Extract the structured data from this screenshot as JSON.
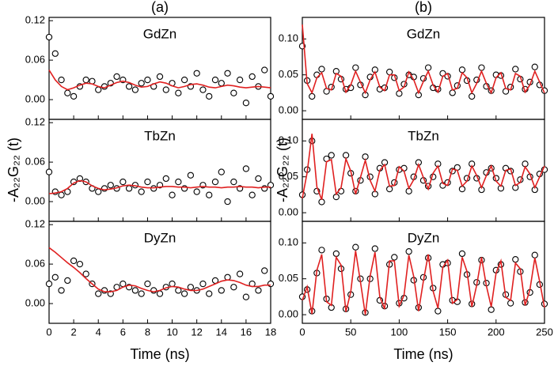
{
  "panels": [
    {
      "label": "(a)",
      "ylabel": "-A₂₂G₂₂ (t)",
      "xlabel": "Time (ns)"
    },
    {
      "label": "(b)",
      "ylabel": "-A₂₂G₂₂ (t)",
      "xlabel": "Time (ns)"
    }
  ],
  "chart_data": [
    {
      "type": "scatter",
      "title": "GdZn",
      "x": [
        0,
        0.5,
        1,
        1.5,
        2,
        2.5,
        3,
        3.5,
        4,
        4.5,
        5,
        5.5,
        6,
        6.5,
        7,
        7.5,
        8,
        8.5,
        9,
        9.5,
        10,
        10.5,
        11,
        11.5,
        12,
        12.5,
        13,
        13.5,
        14,
        14.5,
        15,
        15.5,
        16,
        16.5,
        17,
        17.5,
        18
      ],
      "xlim": [
        0,
        18
      ],
      "xticks": [
        0,
        2,
        4,
        6,
        8,
        10,
        12,
        14,
        16,
        18
      ],
      "ylim": [
        -0.03,
        0.125
      ],
      "yticks": [
        {
          "value": 0,
          "label": "0.00"
        },
        0.06,
        0.12
      ],
      "series": [
        {
          "mode": "markers",
          "color": "#000000",
          "values": [
            0.095,
            0.07,
            0.03,
            0.01,
            0.005,
            0.02,
            0.03,
            0.028,
            0.015,
            0.02,
            0.025,
            0.035,
            0.03,
            0.02,
            0.015,
            0.025,
            0.03,
            0.02,
            0.035,
            0.015,
            0.025,
            0.01,
            0.03,
            0.02,
            0.04,
            0.015,
            0.005,
            0.03,
            0.025,
            0.04,
            0.01,
            0.03,
            -0.005,
            0.035,
            0.02,
            0.045,
            0.005
          ]
        },
        {
          "mode": "line",
          "color": "#e02020",
          "values": [
            0.045,
            0.03,
            0.02,
            0.015,
            0.018,
            0.022,
            0.025,
            0.024,
            0.02,
            0.018,
            0.022,
            0.026,
            0.028,
            0.026,
            0.022,
            0.019,
            0.02,
            0.024,
            0.027,
            0.025,
            0.021,
            0.018,
            0.02,
            0.023,
            0.024,
            0.022,
            0.019,
            0.018,
            0.02,
            0.022,
            0.021,
            0.019,
            0.018,
            0.019,
            0.02,
            0.019,
            0.018
          ]
        }
      ]
    },
    {
      "type": "scatter",
      "title": "TbZn",
      "x": [
        0,
        0.5,
        1,
        1.5,
        2,
        2.5,
        3,
        3.5,
        4,
        4.5,
        5,
        5.5,
        6,
        6.5,
        7,
        7.5,
        8,
        8.5,
        9,
        9.5,
        10,
        10.5,
        11,
        11.5,
        12,
        12.5,
        13,
        13.5,
        14,
        14.5,
        15,
        15.5,
        16,
        16.5,
        17,
        17.5,
        18
      ],
      "xlim": [
        0,
        18
      ],
      "xticks": [
        0,
        2,
        4,
        6,
        8,
        10,
        12,
        14,
        16,
        18
      ],
      "ylim": [
        -0.03,
        0.125
      ],
      "yticks": [
        {
          "value": 0,
          "label": "0.00"
        },
        0.06,
        0.12
      ],
      "series": [
        {
          "mode": "markers",
          "color": "#000000",
          "values": [
            0.045,
            0.015,
            0.01,
            0.015,
            0.03,
            0.035,
            0.03,
            0.02,
            0.015,
            0.02,
            0.025,
            0.02,
            0.03,
            0.02,
            0.025,
            0.015,
            0.03,
            0.02,
            0.025,
            0.035,
            0.01,
            0.03,
            0.02,
            0.04,
            0.015,
            0.025,
            0.01,
            0.03,
            0.045,
            0.0,
            0.03,
            0.02,
            0.05,
            0.01,
            0.035,
            0.02,
            0.025
          ]
        },
        {
          "mode": "line",
          "color": "#e02020",
          "values": [
            0.012,
            0.013,
            0.015,
            0.02,
            0.028,
            0.032,
            0.03,
            0.024,
            0.02,
            0.018,
            0.019,
            0.021,
            0.024,
            0.025,
            0.024,
            0.022,
            0.021,
            0.021,
            0.022,
            0.023,
            0.023,
            0.022,
            0.022,
            0.021,
            0.022,
            0.023,
            0.022,
            0.022,
            0.021,
            0.022,
            0.022,
            0.023,
            0.022,
            0.022,
            0.021,
            0.022,
            0.022
          ]
        }
      ]
    },
    {
      "type": "scatter",
      "title": "DyZn",
      "x": [
        0,
        0.5,
        1,
        1.5,
        2,
        2.5,
        3,
        3.5,
        4,
        4.5,
        5,
        5.5,
        6,
        6.5,
        7,
        7.5,
        8,
        8.5,
        9,
        9.5,
        10,
        10.5,
        11,
        11.5,
        12,
        12.5,
        13,
        13.5,
        14,
        14.5,
        15,
        15.5,
        16,
        16.5,
        17,
        17.5,
        18
      ],
      "xlim": [
        0,
        18
      ],
      "xticks": [
        0,
        2,
        4,
        6,
        8,
        10,
        12,
        14,
        16,
        18
      ],
      "ylim": [
        -0.03,
        0.125
      ],
      "yticks": [
        {
          "value": 0,
          "label": "0.00"
        },
        0.06,
        0.12
      ],
      "series": [
        {
          "mode": "markers",
          "color": "#000000",
          "values": [
            0.03,
            0.04,
            0.02,
            0.035,
            0.065,
            0.06,
            0.045,
            0.03,
            0.015,
            0.02,
            0.015,
            0.025,
            0.03,
            0.025,
            0.02,
            0.015,
            0.03,
            0.02,
            0.015,
            0.025,
            0.03,
            0.02,
            0.015,
            0.025,
            0.02,
            0.03,
            0.015,
            0.035,
            0.02,
            0.04,
            0.025,
            0.045,
            0.01,
            0.03,
            0.02,
            0.05,
            0.03
          ]
        },
        {
          "mode": "line",
          "color": "#e02020",
          "values": [
            0.085,
            0.078,
            0.07,
            0.062,
            0.055,
            0.047,
            0.038,
            0.03,
            0.022,
            0.018,
            0.018,
            0.02,
            0.025,
            0.028,
            0.027,
            0.023,
            0.02,
            0.018,
            0.02,
            0.024,
            0.026,
            0.025,
            0.022,
            0.02,
            0.02,
            0.022,
            0.026,
            0.03,
            0.034,
            0.036,
            0.035,
            0.032,
            0.028,
            0.026,
            0.026,
            0.028,
            0.028
          ]
        }
      ]
    },
    {
      "type": "scatter",
      "title": "GdZn",
      "x": [
        0,
        5,
        10,
        15,
        20,
        25,
        30,
        35,
        40,
        45,
        50,
        55,
        60,
        65,
        70,
        75,
        80,
        85,
        90,
        95,
        100,
        105,
        110,
        115,
        120,
        125,
        130,
        135,
        140,
        145,
        150,
        155,
        160,
        165,
        170,
        175,
        180,
        185,
        190,
        195,
        200,
        205,
        210,
        215,
        220,
        225,
        230,
        235,
        240,
        245,
        250
      ],
      "xlim": [
        0,
        250
      ],
      "xticks": [
        0,
        50,
        100,
        150,
        200,
        250
      ],
      "ylim": [
        -0.012,
        0.13
      ],
      "yticks": [
        {
          "value": 0,
          "label": "0.00"
        },
        0.05,
        {
          "value": 0.1,
          "label": "0.10"
        }
      ],
      "series": [
        {
          "mode": "markers",
          "color": "#000000",
          "values": [
            0.09,
            0.042,
            0.02,
            0.05,
            0.058,
            0.027,
            0.033,
            0.055,
            0.044,
            0.03,
            0.032,
            0.06,
            0.036,
            0.022,
            0.047,
            0.057,
            0.03,
            0.032,
            0.054,
            0.046,
            0.024,
            0.037,
            0.05,
            0.047,
            0.022,
            0.045,
            0.06,
            0.032,
            0.03,
            0.052,
            0.048,
            0.025,
            0.035,
            0.057,
            0.042,
            0.02,
            0.043,
            0.06,
            0.034,
            0.028,
            0.05,
            0.049,
            0.027,
            0.033,
            0.058,
            0.044,
            0.03,
            0.04,
            0.061,
            0.036,
            0.028
          ]
        },
        {
          "mode": "line",
          "color": "#e02020",
          "values": [
            0.12,
            0.038,
            0.025,
            0.046,
            0.053,
            0.031,
            0.029,
            0.052,
            0.048,
            0.026,
            0.036,
            0.055,
            0.04,
            0.025,
            0.043,
            0.054,
            0.033,
            0.028,
            0.05,
            0.05,
            0.028,
            0.033,
            0.054,
            0.043,
            0.025,
            0.041,
            0.055,
            0.036,
            0.026,
            0.048,
            0.052,
            0.029,
            0.031,
            0.053,
            0.046,
            0.025,
            0.038,
            0.055,
            0.038,
            0.025,
            0.046,
            0.053,
            0.031,
            0.029,
            0.052,
            0.048,
            0.026,
            0.036,
            0.055,
            0.04,
            0.025
          ]
        }
      ]
    },
    {
      "type": "scatter",
      "title": "TbZn",
      "x": [
        0,
        5,
        10,
        15,
        20,
        25,
        30,
        35,
        40,
        45,
        50,
        55,
        60,
        65,
        70,
        75,
        80,
        85,
        90,
        95,
        100,
        105,
        110,
        115,
        120,
        125,
        130,
        135,
        140,
        145,
        150,
        155,
        160,
        165,
        170,
        175,
        180,
        185,
        190,
        195,
        200,
        205,
        210,
        215,
        220,
        225,
        230,
        235,
        240,
        245,
        250
      ],
      "xlim": [
        0,
        250
      ],
      "xticks": [
        0,
        50,
        100,
        150,
        200,
        250
      ],
      "ylim": [
        -0.012,
        0.13
      ],
      "yticks": [
        {
          "value": 0,
          "label": "0.00"
        },
        0.05,
        {
          "value": 0.1,
          "label": "0.10"
        }
      ],
      "series": [
        {
          "mode": "markers",
          "color": "#000000",
          "values": [
            0.025,
            0.06,
            0.1,
            0.03,
            0.015,
            0.075,
            0.08,
            0.022,
            0.03,
            0.08,
            0.055,
            0.03,
            0.045,
            0.078,
            0.05,
            0.026,
            0.062,
            0.07,
            0.033,
            0.042,
            0.06,
            0.062,
            0.03,
            0.05,
            0.07,
            0.045,
            0.037,
            0.05,
            0.068,
            0.038,
            0.042,
            0.058,
            0.063,
            0.033,
            0.048,
            0.068,
            0.048,
            0.032,
            0.056,
            0.062,
            0.048,
            0.034,
            0.062,
            0.058,
            0.035,
            0.046,
            0.068,
            0.05,
            0.032,
            0.054,
            0.06
          ]
        },
        {
          "mode": "line",
          "color": "#e02020",
          "values": [
            0.02,
            0.056,
            0.11,
            0.036,
            0.018,
            0.071,
            0.074,
            0.026,
            0.035,
            0.075,
            0.058,
            0.026,
            0.049,
            0.073,
            0.045,
            0.03,
            0.059,
            0.067,
            0.037,
            0.038,
            0.064,
            0.058,
            0.034,
            0.046,
            0.067,
            0.049,
            0.033,
            0.055,
            0.065,
            0.041,
            0.038,
            0.061,
            0.059,
            0.037,
            0.044,
            0.065,
            0.052,
            0.035,
            0.052,
            0.065,
            0.044,
            0.037,
            0.059,
            0.061,
            0.038,
            0.042,
            0.064,
            0.054,
            0.035,
            0.05,
            0.065
          ]
        }
      ]
    },
    {
      "type": "scatter",
      "title": "DyZn",
      "x": [
        0,
        5,
        10,
        15,
        20,
        25,
        30,
        35,
        40,
        45,
        50,
        55,
        60,
        65,
        70,
        75,
        80,
        85,
        90,
        95,
        100,
        105,
        110,
        115,
        120,
        125,
        130,
        135,
        140,
        145,
        150,
        155,
        160,
        165,
        170,
        175,
        180,
        185,
        190,
        195,
        200,
        205,
        210,
        215,
        220,
        225,
        230,
        235,
        240,
        245,
        250
      ],
      "xlim": [
        0,
        250
      ],
      "xticks": [
        0,
        50,
        100,
        150,
        200,
        250
      ],
      "ylim": [
        -0.012,
        0.13
      ],
      "yticks": [
        {
          "value": 0,
          "label": "0.00"
        },
        0.05,
        {
          "value": 0.1,
          "label": "0.10"
        }
      ],
      "series": [
        {
          "mode": "markers",
          "color": "#000000",
          "values": [
            0.025,
            0.035,
            0.005,
            0.058,
            0.09,
            0.022,
            0.01,
            0.085,
            0.064,
            0.008,
            0.028,
            0.094,
            0.05,
            0.003,
            0.05,
            0.092,
            0.02,
            0.012,
            0.07,
            0.08,
            0.016,
            0.023,
            0.088,
            0.048,
            0.01,
            0.052,
            0.079,
            0.037,
            0.005,
            0.07,
            0.072,
            0.02,
            0.018,
            0.085,
            0.056,
            0.015,
            0.045,
            0.076,
            0.044,
            0.007,
            0.062,
            0.07,
            0.028,
            0.016,
            0.077,
            0.06,
            0.017,
            0.031,
            0.083,
            0.042,
            0.015
          ]
        },
        {
          "mode": "line",
          "color": "#e02020",
          "values": [
            0.02,
            0.039,
            0.001,
            0.062,
            0.084,
            0.018,
            0.013,
            0.08,
            0.069,
            0.004,
            0.032,
            0.089,
            0.046,
            0.0,
            0.054,
            0.087,
            0.025,
            0.008,
            0.075,
            0.075,
            0.012,
            0.027,
            0.083,
            0.053,
            0.005,
            0.047,
            0.084,
            0.033,
            0.009,
            0.066,
            0.076,
            0.016,
            0.021,
            0.08,
            0.06,
            0.011,
            0.041,
            0.08,
            0.04,
            0.011,
            0.058,
            0.075,
            0.024,
            0.02,
            0.072,
            0.064,
            0.013,
            0.035,
            0.079,
            0.046,
            0.01
          ]
        }
      ]
    }
  ]
}
